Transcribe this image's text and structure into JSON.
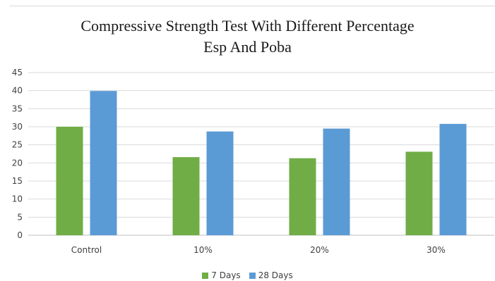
{
  "chart_data": {
    "type": "bar",
    "title_line1": "Compressive Strength Test With Different Percentage",
    "title_line2": "Esp And Poba",
    "categories": [
      "Control",
      "10%",
      "20%",
      "30%"
    ],
    "series": [
      {
        "name": "7 Days",
        "color": "#70ad47",
        "values": [
          30,
          21.6,
          21.3,
          23.1
        ]
      },
      {
        "name": "28 Days",
        "color": "#5b9bd5",
        "values": [
          39.9,
          28.7,
          29.5,
          30.8
        ]
      }
    ],
    "ylim": [
      0,
      45
    ],
    "yticks": [
      "0",
      "5",
      "10",
      "15",
      "20",
      "25",
      "30",
      "35",
      "40",
      "45"
    ],
    "grid": true,
    "legend": "bottom"
  }
}
